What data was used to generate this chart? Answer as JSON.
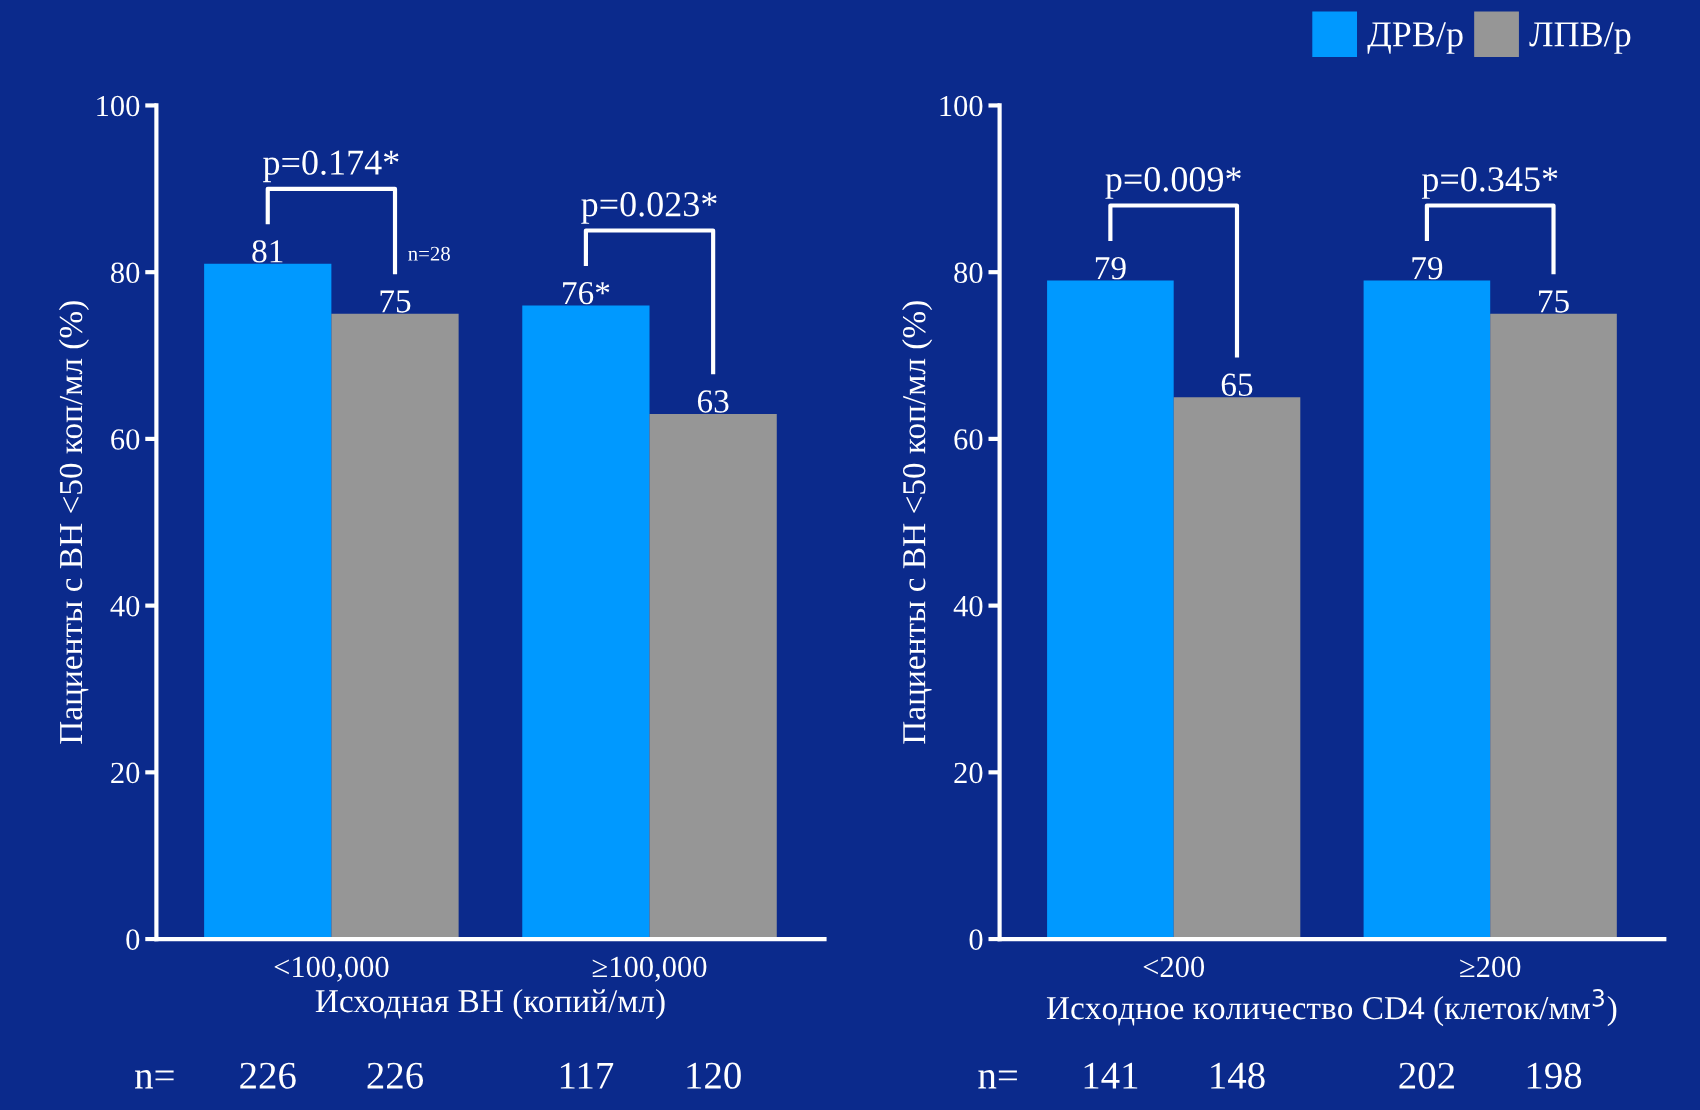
{
  "chart_data": [
    {
      "type": "bar",
      "ylabel": "Пациенты с ВН <50 коп/мл (%)",
      "xlabel": "Исходная ВН (копий/мл)",
      "categories": [
        "<100,000",
        "≥100,000"
      ],
      "ylim": [
        0,
        100
      ],
      "yticks": [
        0,
        20,
        40,
        60,
        80,
        100
      ],
      "grid": false,
      "legend": false,
      "series": [
        {
          "color": "#0099ff",
          "values": [
            81,
            76
          ],
          "value_labels": [
            "81",
            "76*"
          ]
        },
        {
          "color": "#969696",
          "values": [
            75,
            63
          ],
          "value_labels": [
            "75",
            "63"
          ]
        }
      ],
      "annotations": [
        "p=0.174*",
        "p=0.023*",
        "n=28",
        "n=",
        "226",
        "226",
        "117",
        "120"
      ]
    },
    {
      "type": "bar",
      "ylabel": "Пациенты с ВН <50 коп/мл (%)",
      "xlabel": "Исходное количество CD4 (клеток/мм$^{3}$)",
      "categories": [
        "<200",
        "≥200"
      ],
      "ylim": [
        0,
        100
      ],
      "yticks": [
        0,
        20,
        40,
        60,
        80,
        100
      ],
      "grid": false,
      "legend": "top right",
      "series": [
        {
          "name": "ДРВ/р",
          "color": "#0099ff",
          "values": [
            79,
            79
          ],
          "value_labels": [
            "79",
            "79"
          ]
        },
        {
          "name": "ЛПВ/р",
          "color": "#969696",
          "values": [
            65,
            75
          ],
          "value_labels": [
            "65",
            "75"
          ]
        }
      ],
      "annotations": [
        "p=0.009*",
        "p=0.345*",
        "n=",
        "141",
        "148",
        "202",
        "198"
      ]
    }
  ]
}
